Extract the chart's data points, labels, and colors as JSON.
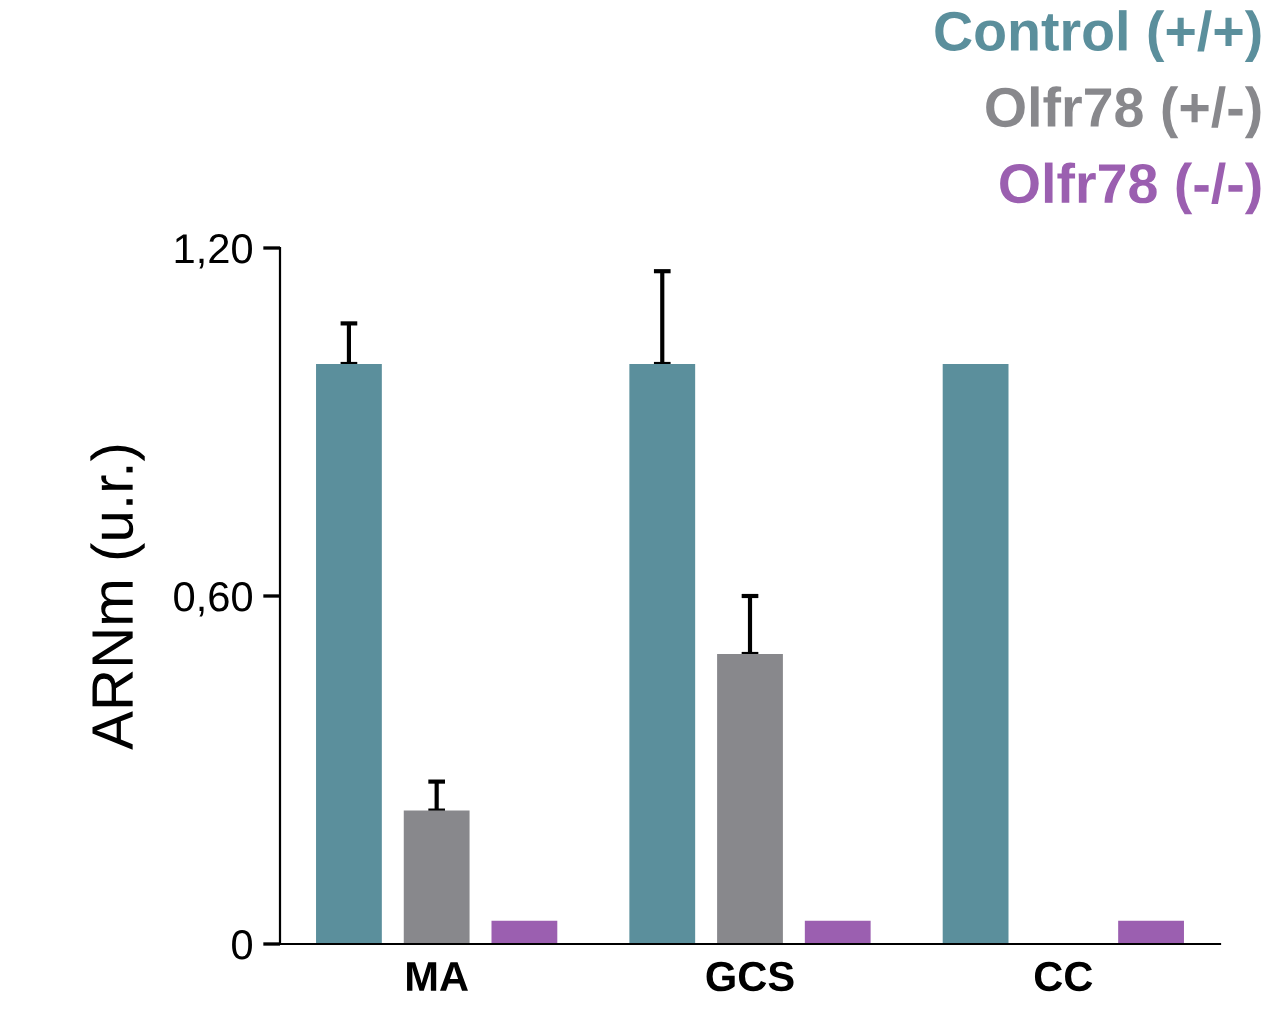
{
  "chart_data": {
    "type": "bar",
    "ylabel": "ARNm (u.r.)",
    "categories": [
      "MA",
      "GCS",
      "CC"
    ],
    "series": [
      {
        "name": "Control (+/+)",
        "color": "#5b8f9c",
        "values": [
          1.0,
          1.0,
          1.0
        ],
        "errors": [
          [
            1.0,
            1.07
          ],
          [
            1.0,
            1.16
          ],
          null
        ]
      },
      {
        "name": "Olfr78 (+/-)",
        "color": "#88888c",
        "values": [
          0.23,
          0.5,
          null
        ],
        "errors": [
          [
            0.23,
            0.28
          ],
          [
            0.5,
            0.6
          ],
          null
        ]
      },
      {
        "name": "Olfr78 (-/-)",
        "color": "#9b5fb0",
        "values": [
          0.04,
          0.04,
          0.04
        ]
      }
    ],
    "ylim": [
      0,
      1.2
    ],
    "yticks": [
      {
        "value": 0,
        "label": "0"
      },
      {
        "value": 0.6,
        "label": "0,60"
      },
      {
        "value": 1.2,
        "label": "1,20"
      }
    ],
    "grid": false,
    "legend": "top right"
  }
}
